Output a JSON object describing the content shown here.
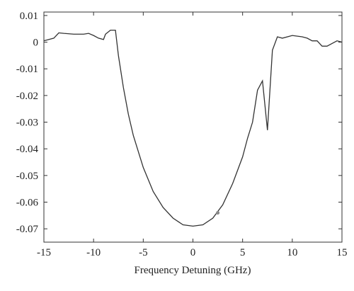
{
  "chart_data": {
    "type": "line",
    "x_label": "Frequency Detuning (GHz)",
    "x": [
      -15,
      -14.5,
      -14,
      -13.5,
      -13,
      -12,
      -11,
      -10.5,
      -10,
      -9.5,
      -9,
      -8.8,
      -8.3,
      -7.8,
      -7.5,
      -7,
      -6.5,
      -6,
      -5,
      -4,
      -3,
      -2,
      -1,
      0,
      1,
      2,
      3,
      4,
      5,
      5.5,
      6,
      6.5,
      7,
      7.5,
      8,
      8.5,
      9,
      10,
      11,
      11.5,
      12,
      12.5,
      13,
      13.5,
      14,
      14.5,
      15
    ],
    "series": [
      {
        "color": "#333333",
        "values": [
          0.0005,
          0.001,
          0.0015,
          0.0035,
          0.0033,
          0.003,
          0.003,
          0.0033,
          0.0025,
          0.0015,
          0.001,
          0.003,
          0.0045,
          0.0045,
          -0.005,
          -0.017,
          -0.027,
          -0.035,
          -0.047,
          -0.056,
          -0.062,
          -0.066,
          -0.0685,
          -0.069,
          -0.0685,
          -0.066,
          -0.061,
          -0.053,
          -0.043,
          -0.036,
          -0.03,
          -0.018,
          -0.0145,
          -0.033,
          -0.003,
          0.002,
          0.0015,
          0.0025,
          0.002,
          0.0015,
          0.0005,
          0.0005,
          -0.0015,
          -0.0015,
          -0.0005,
          0.0005,
          0
        ]
      }
    ],
    "marker": {
      "x": 2.5,
      "y": -0.064,
      "color": "#8a8a8a"
    },
    "xlim": [
      -15,
      15
    ],
    "ylim": [
      -0.075,
      0.0113
    ],
    "xticks": [
      -15,
      -10,
      -5,
      0,
      5,
      10,
      15
    ],
    "yticks": [
      0.01,
      0,
      -0.01,
      -0.02,
      -0.03,
      -0.04,
      -0.05,
      -0.06,
      -0.07
    ]
  }
}
